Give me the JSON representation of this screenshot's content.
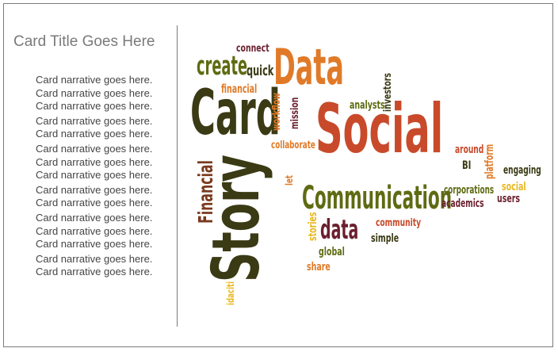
{
  "card": {
    "title": "Card Title Goes Here",
    "narrative": [
      "Card narrative goes here.",
      "Card narrative goes here.",
      "Card narrative goes here.",
      "Card narrative goes here.",
      "Card narrative goes here.",
      "Card narrative goes here.",
      "Card narrative goes here.",
      "Card narrative goes here.",
      "Card narrative goes here.",
      "Card narrative goes here.",
      "Card narrative goes here.",
      "Card narrative goes here.",
      "Card narrative goes here.",
      "Card narrative goes here.",
      "Card narrative goes here."
    ]
  },
  "colors": {
    "olive": "#5f6b12",
    "dark": "#3a3a14",
    "orange": "#e07a28",
    "red": "#c84a2a",
    "maroon": "#6b1f2e",
    "yellow": "#e8b820",
    "brown": "#7a3a1e",
    "text_gray": "#444444",
    "title_gray": "#7a7a7a"
  },
  "wordcloud": {
    "words": [
      {
        "text": "Social",
        "color": "#c84a2a"
      },
      {
        "text": "Story",
        "color": "#3a3a14"
      },
      {
        "text": "Card",
        "color": "#3a3a14"
      },
      {
        "text": "Data",
        "color": "#e07a28"
      },
      {
        "text": "Communication",
        "color": "#5f6b12"
      },
      {
        "text": "Financial",
        "color": "#7a3a1e"
      },
      {
        "text": "create",
        "color": "#5f6b12"
      },
      {
        "text": "data",
        "color": "#6b1f2e"
      },
      {
        "text": "connect",
        "color": "#6b1f2e"
      },
      {
        "text": "quick",
        "color": "#3a3a14"
      },
      {
        "text": "financial",
        "color": "#e07a28"
      },
      {
        "text": "workflow",
        "color": "#e07a28"
      },
      {
        "text": "mission",
        "color": "#6b1f2e"
      },
      {
        "text": "analysts",
        "color": "#5f6b12"
      },
      {
        "text": "investors",
        "color": "#3a3a14"
      },
      {
        "text": "collaborate",
        "color": "#e07a28"
      },
      {
        "text": "let",
        "color": "#e07a28"
      },
      {
        "text": "around",
        "color": "#c84a2a"
      },
      {
        "text": "BI",
        "color": "#3a3a14"
      },
      {
        "text": "platform",
        "color": "#e07a28"
      },
      {
        "text": "engaging",
        "color": "#3a3a14"
      },
      {
        "text": "corporations",
        "color": "#5f6b12"
      },
      {
        "text": "social",
        "color": "#e8b820"
      },
      {
        "text": "academics",
        "color": "#6b1f2e"
      },
      {
        "text": "users",
        "color": "#6b1f2e"
      },
      {
        "text": "community",
        "color": "#c84a2a"
      },
      {
        "text": "stories",
        "color": "#e8b820"
      },
      {
        "text": "simple",
        "color": "#3a3a14"
      },
      {
        "text": "global",
        "color": "#5f6b12"
      },
      {
        "text": "share",
        "color": "#e07a28"
      },
      {
        "text": "idaciti",
        "color": "#e8b820"
      }
    ]
  }
}
